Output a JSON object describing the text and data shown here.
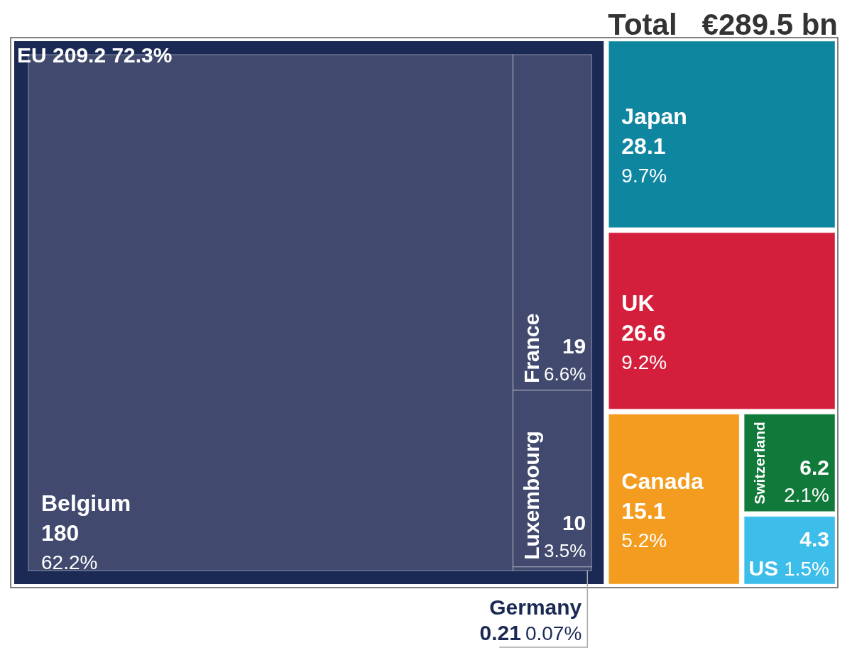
{
  "chart_data": {
    "type": "other",
    "title": "Total   €289.5 bn",
    "categories": [
      "Belgium",
      "France",
      "Luxembourg",
      "Germany",
      "Japan",
      "UK",
      "Canada",
      "Switzerland",
      "US"
    ],
    "values": [
      180,
      19,
      10,
      0.21,
      28.1,
      26.6,
      15.1,
      6.2,
      4.3
    ],
    "value_labels": [
      "180 62.2%",
      "19 6.6%",
      "10 3.5%",
      "0.21 0.07%",
      "28.1 9.7%",
      "26.6 9.2%",
      "15.1 5.2%",
      "6.2 2.1%",
      "4.3 1.5%"
    ],
    "colors": [
      "#414a6e",
      "#414a6e",
      "#414a6e",
      "#414a6e",
      "#0e86a0",
      "#d41f3c",
      "#f39c1f",
      "#117a3a",
      "#3dbde9"
    ],
    "annotations": [
      "EU 209.2 72.3%"
    ]
  }
}
